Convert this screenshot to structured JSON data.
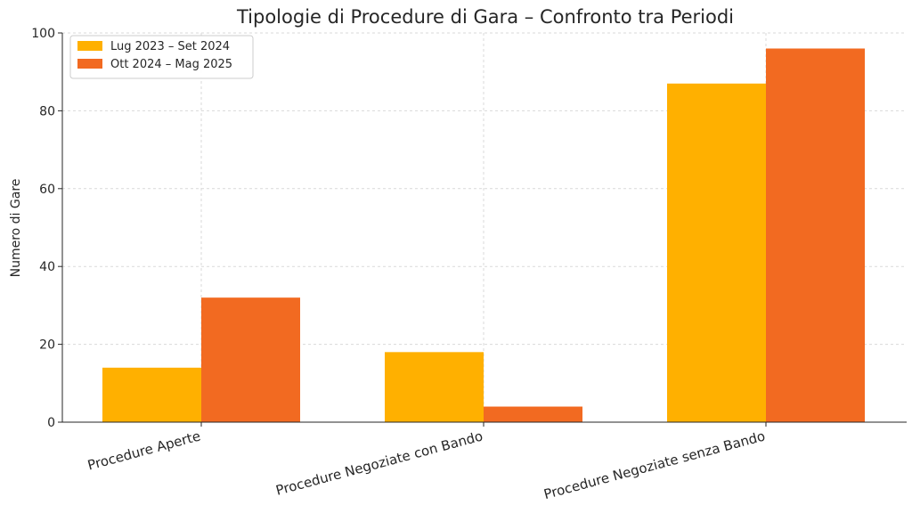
{
  "chart_data": {
    "type": "bar",
    "title": "Tipologie di Procedure di Gara – Confronto tra Periodi",
    "xlabel": "",
    "ylabel": "Numero di Gare",
    "categories": [
      "Procedure Aperte",
      "Procedure Negoziate con Bando",
      "Procedure Negoziate senza Bando"
    ],
    "series": [
      {
        "name": "Lug 2023 – Set 2024",
        "values": [
          14,
          18,
          87
        ],
        "color": "#FFB000"
      },
      {
        "name": "Ott 2024 – Mag 2025",
        "values": [
          32,
          4,
          96
        ],
        "color": "#F26A21"
      }
    ],
    "ylim": [
      0,
      100
    ],
    "yticks": [
      0,
      20,
      40,
      60,
      80,
      100
    ],
    "grid": true,
    "legend": "top-left"
  }
}
